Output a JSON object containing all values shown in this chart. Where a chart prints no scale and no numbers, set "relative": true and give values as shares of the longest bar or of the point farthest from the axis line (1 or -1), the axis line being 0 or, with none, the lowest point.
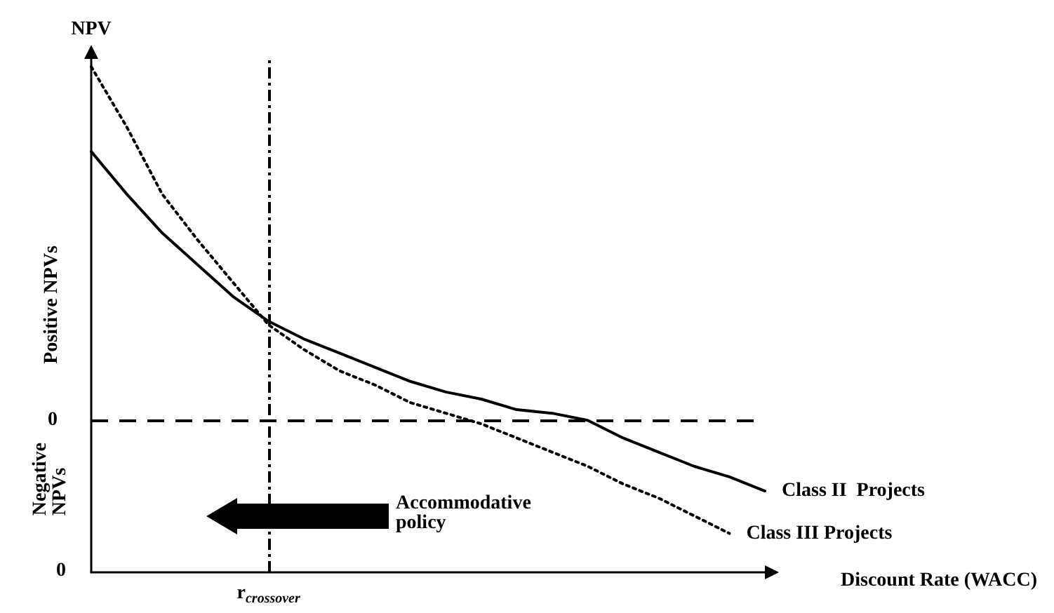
{
  "chart_data": {
    "type": "line",
    "relative": true,
    "ylabel": "NPV",
    "xlabel": "Discount Rate (WACC)",
    "categories": [
      null,
      null,
      null,
      null,
      null,
      null,
      null,
      null,
      null,
      null,
      null,
      null,
      null,
      null,
      null,
      null,
      null,
      null,
      null,
      null
    ],
    "series": [
      {
        "name": "Class II  Projects",
        "color": "#000000",
        "line_style": "solid",
        "values": [
          0.76,
          0.64,
          0.53,
          0.44,
          0.35,
          0.28,
          0.23,
          0.19,
          0.15,
          0.11,
          0.08,
          0.06,
          0.03,
          0.02,
          0.0,
          -0.05,
          -0.09,
          -0.13,
          -0.16,
          -0.2
        ]
      },
      {
        "name": "Class III Projects",
        "color": "#000000",
        "line_style": "dotted",
        "values": [
          1.0,
          0.83,
          0.64,
          0.51,
          0.39,
          0.27,
          0.2,
          0.14,
          0.1,
          0.05,
          0.02,
          -0.01,
          -0.05,
          -0.09,
          -0.13,
          -0.18,
          -0.22,
          -0.27,
          -0.32,
          null
        ]
      }
    ],
    "ref_lines": [
      {
        "axis": "y",
        "value": 0,
        "label": "0",
        "line_style": "dashed"
      }
    ],
    "annotations": [
      "Positive NPVs",
      "Negative NPVs",
      "0",
      "Accommodative policy",
      "r$_{crossover}$"
    ],
    "legend": false,
    "grid": false
  }
}
